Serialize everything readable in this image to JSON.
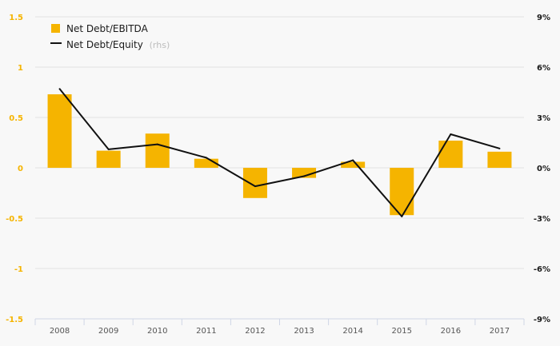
{
  "chart_data": {
    "type": "bar",
    "categories": [
      "2008",
      "2009",
      "2010",
      "2011",
      "2012",
      "2013",
      "2014",
      "2015",
      "2016",
      "2017"
    ],
    "series": [
      {
        "name": "Net Debt/EBITDA",
        "type": "bar",
        "axis": "left",
        "color": "#f5b400",
        "values": [
          0.73,
          0.17,
          0.34,
          0.09,
          -0.3,
          -0.1,
          0.06,
          -0.47,
          0.27,
          0.16
        ]
      },
      {
        "name": "Net Debt/Equity",
        "name_suffix": "(rhs)",
        "type": "line",
        "axis": "right",
        "color": "#111111",
        "values": [
          4.7,
          1.1,
          1.4,
          0.6,
          -1.1,
          -0.5,
          0.45,
          -2.9,
          2.0,
          1.15
        ]
      }
    ],
    "y_left": {
      "ylim": [
        -1.5,
        1.5
      ],
      "ticks": [
        -1.5,
        -1,
        -0.5,
        0,
        0.5,
        1,
        1.5
      ],
      "tick_labels": [
        "-1.5",
        "-1",
        "-0.5",
        "0",
        "0.5",
        "1",
        "1.5"
      ]
    },
    "y_right": {
      "ylim": [
        -9,
        9
      ],
      "ticks": [
        -9,
        -6,
        -3,
        0,
        3,
        6,
        9
      ],
      "tick_labels": [
        "-9%",
        "-6%",
        "-3%",
        "0%",
        "3%",
        "6%",
        "9%"
      ]
    },
    "grid": true,
    "legend": "top-left"
  }
}
